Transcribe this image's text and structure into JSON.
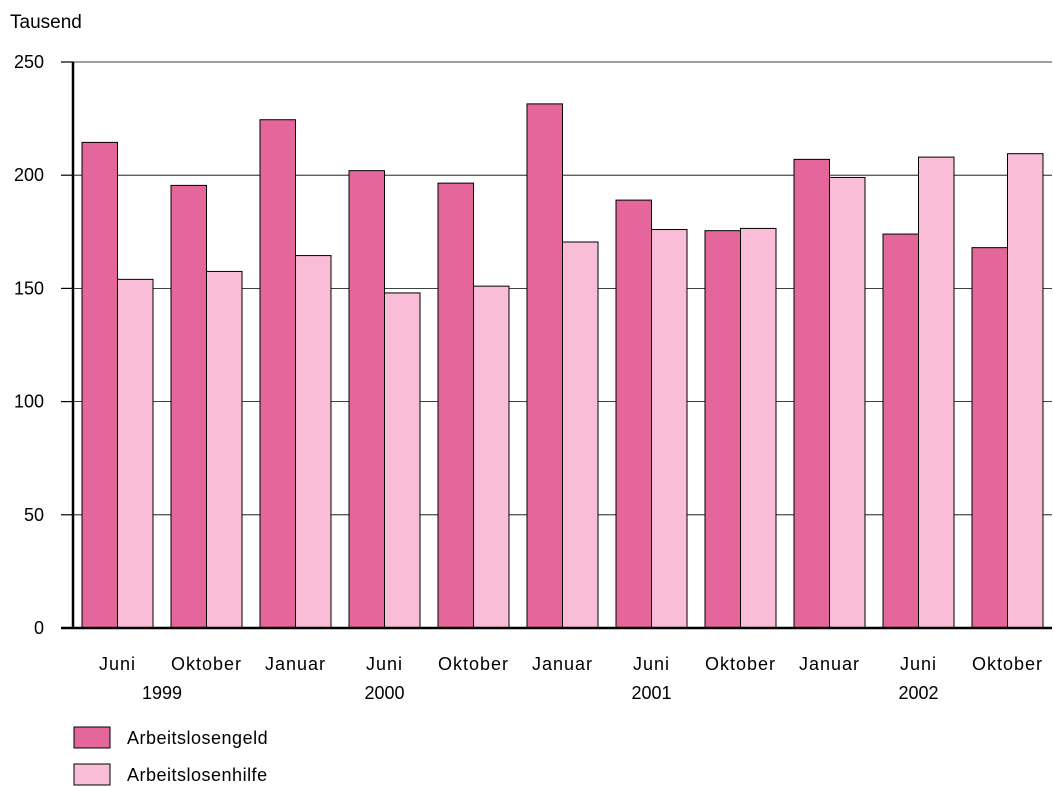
{
  "chart_data": {
    "type": "bar",
    "unit_label": "Tausend",
    "categories": [
      "Juni",
      "Oktober",
      "Januar",
      "Juni",
      "Oktober",
      "Januar",
      "Juni",
      "Oktober",
      "Januar",
      "Juni",
      "Oktober"
    ],
    "year_labels": [
      {
        "label": "1999",
        "category_index": 0.5
      },
      {
        "label": "2000",
        "category_index": 3
      },
      {
        "label": "2001",
        "category_index": 6
      },
      {
        "label": "2002",
        "category_index": 9
      }
    ],
    "series": [
      {
        "name": "Arbeitslosengeld",
        "color": "#e5669b",
        "values": [
          214.5,
          195.5,
          224.5,
          202,
          196.5,
          231.5,
          189,
          175.5,
          207,
          174,
          168
        ]
      },
      {
        "name": "Arbeitslosenhilfe",
        "color": "#f9bdd8",
        "values": [
          154,
          157.5,
          164.5,
          148,
          151,
          170.5,
          176,
          176.5,
          199,
          208,
          209.5
        ]
      }
    ],
    "ylim": [
      0,
      250
    ],
    "yticks": [
      0,
      50,
      100,
      150,
      200,
      250
    ],
    "grid": true,
    "legend_position": "bottom-left"
  }
}
